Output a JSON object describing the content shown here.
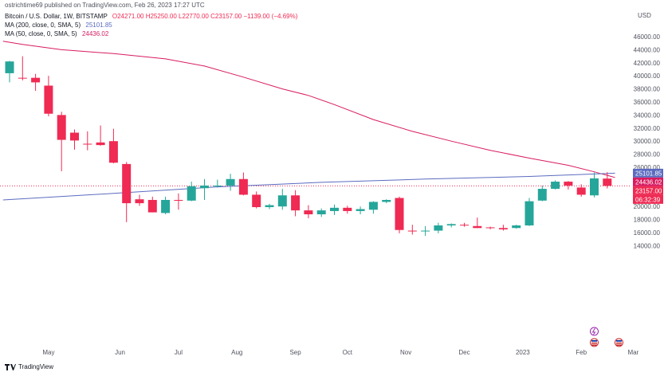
{
  "header": {
    "published": "ostrichtime69 published on TradingView.com, Feb 26, 2023 17:27 UTC"
  },
  "legend": {
    "ohlc_label": "Bitcoin / U.S. Dollar, 1W, BITSTAMP",
    "ohlc_values": "O24271.00 H25250.00 L22770.00 C23157.00 −1139.00 (−4.69%)",
    "ma200_label": "MA (200, close, 0, SMA, 5)",
    "ma200_value": "25101.85",
    "ma50_label": "MA (50, close, 0, SMA, 5)",
    "ma50_value": "24436.02"
  },
  "logo": {
    "text": "TradingView"
  },
  "colors": {
    "up": "#26a69a",
    "down": "#ef2a53",
    "ma200": "#5b6bc0",
    "ma50": "#d81b60",
    "current": "#ef2a53"
  },
  "chart_data": {
    "type": "candlestick",
    "currency": "USD",
    "ylim": [
      13000,
      48000
    ],
    "y_ticks": [
      "14000.00",
      "16000.00",
      "18000.00",
      "20000.00",
      "22000.00",
      "24000.00",
      "26000.00",
      "28000.00",
      "30000.00",
      "32000.00",
      "34000.00",
      "36000.00",
      "38000.00",
      "40000.00",
      "42000.00",
      "44000.00",
      "46000.00"
    ],
    "x_ticks": [
      {
        "label": "May",
        "bar": 3
      },
      {
        "label": "Jun",
        "bar": 8.5
      },
      {
        "label": "Jul",
        "bar": 13
      },
      {
        "label": "Aug",
        "bar": 17.5
      },
      {
        "label": "Sep",
        "bar": 22
      },
      {
        "label": "Oct",
        "bar": 26
      },
      {
        "label": "Nov",
        "bar": 30.5
      },
      {
        "label": "Dec",
        "bar": 35
      },
      {
        "label": "2023",
        "bar": 39.5
      },
      {
        "label": "Feb",
        "bar": 44
      },
      {
        "label": "Mar",
        "bar": 48
      }
    ],
    "candles": [
      {
        "o": 40400,
        "h": 42300,
        "l": 39000,
        "c": 42200
      },
      {
        "o": 39700,
        "h": 43000,
        "l": 39300,
        "c": 39600
      },
      {
        "o": 39700,
        "h": 40300,
        "l": 37700,
        "c": 39000
      },
      {
        "o": 38500,
        "h": 40000,
        "l": 33800,
        "c": 34200
      },
      {
        "o": 34000,
        "h": 34500,
        "l": 25400,
        "c": 30200
      },
      {
        "o": 31300,
        "h": 31800,
        "l": 28700,
        "c": 30100
      },
      {
        "o": 29600,
        "h": 31500,
        "l": 28600,
        "c": 29500
      },
      {
        "o": 29800,
        "h": 32400,
        "l": 29300,
        "c": 29400
      },
      {
        "o": 30000,
        "h": 31900,
        "l": 26600,
        "c": 26700
      },
      {
        "o": 26500,
        "h": 26800,
        "l": 17600,
        "c": 20500
      },
      {
        "o": 21100,
        "h": 21800,
        "l": 20100,
        "c": 20500
      },
      {
        "o": 21000,
        "h": 21500,
        "l": 19100,
        "c": 19100
      },
      {
        "o": 19000,
        "h": 21500,
        "l": 18800,
        "c": 21000
      },
      {
        "o": 21000,
        "h": 22000,
        "l": 19500,
        "c": 20900
      },
      {
        "o": 20900,
        "h": 23800,
        "l": 20800,
        "c": 23100
      },
      {
        "o": 22800,
        "h": 24200,
        "l": 21000,
        "c": 23200
      },
      {
        "o": 23200,
        "h": 24100,
        "l": 22900,
        "c": 23200
      },
      {
        "o": 23200,
        "h": 25000,
        "l": 22400,
        "c": 24200
      },
      {
        "o": 24200,
        "h": 25200,
        "l": 21700,
        "c": 21800
      },
      {
        "o": 21800,
        "h": 22300,
        "l": 19700,
        "c": 19900
      },
      {
        "o": 19900,
        "h": 20400,
        "l": 19600,
        "c": 20200
      },
      {
        "o": 20000,
        "h": 22700,
        "l": 19500,
        "c": 21700
      },
      {
        "o": 21700,
        "h": 22500,
        "l": 18500,
        "c": 19400
      },
      {
        "o": 19400,
        "h": 20200,
        "l": 18200,
        "c": 18800
      },
      {
        "o": 18800,
        "h": 19700,
        "l": 18400,
        "c": 19400
      },
      {
        "o": 19300,
        "h": 20300,
        "l": 18700,
        "c": 19800
      },
      {
        "o": 19800,
        "h": 20100,
        "l": 18900,
        "c": 19300
      },
      {
        "o": 19300,
        "h": 20000,
        "l": 18800,
        "c": 19600
      },
      {
        "o": 19500,
        "h": 20800,
        "l": 18900,
        "c": 20700
      },
      {
        "o": 20700,
        "h": 21100,
        "l": 20500,
        "c": 21000
      },
      {
        "o": 21300,
        "h": 21500,
        "l": 15900,
        "c": 16400
      },
      {
        "o": 16300,
        "h": 17200,
        "l": 15700,
        "c": 16200
      },
      {
        "o": 16200,
        "h": 17000,
        "l": 15500,
        "c": 16300
      },
      {
        "o": 16300,
        "h": 17500,
        "l": 15900,
        "c": 17100
      },
      {
        "o": 17100,
        "h": 17400,
        "l": 16800,
        "c": 17300
      },
      {
        "o": 17200,
        "h": 17500,
        "l": 16900,
        "c": 17100
      },
      {
        "o": 17000,
        "h": 18300,
        "l": 16700,
        "c": 16700
      },
      {
        "o": 16800,
        "h": 16900,
        "l": 16500,
        "c": 16700
      },
      {
        "o": 16700,
        "h": 17200,
        "l": 16300,
        "c": 16500
      },
      {
        "o": 16700,
        "h": 17200,
        "l": 16600,
        "c": 17100
      },
      {
        "o": 17100,
        "h": 21300,
        "l": 17000,
        "c": 20800
      },
      {
        "o": 20900,
        "h": 23200,
        "l": 20800,
        "c": 22700
      },
      {
        "o": 22700,
        "h": 24000,
        "l": 22600,
        "c": 23800
      },
      {
        "o": 23800,
        "h": 23900,
        "l": 22600,
        "c": 23200
      },
      {
        "o": 22900,
        "h": 23400,
        "l": 21500,
        "c": 21800
      },
      {
        "o": 21700,
        "h": 25200,
        "l": 21400,
        "c": 24300
      },
      {
        "o": 24271,
        "h": 25250,
        "l": 22770,
        "c": 23157
      }
    ],
    "ma200": [
      {
        "bar": -0.5,
        "y": 21000
      },
      {
        "bar": 8,
        "y": 22000
      },
      {
        "bar": 16,
        "y": 23000
      },
      {
        "bar": 24,
        "y": 23700
      },
      {
        "bar": 32,
        "y": 24200
      },
      {
        "bar": 40,
        "y": 24600
      },
      {
        "bar": 46.6,
        "y": 25102
      }
    ],
    "ma50": [
      {
        "bar": -0.5,
        "y": 45300
      },
      {
        "bar": 1,
        "y": 44800
      },
      {
        "bar": 4,
        "y": 44000
      },
      {
        "bar": 8,
        "y": 43400
      },
      {
        "bar": 12,
        "y": 42600
      },
      {
        "bar": 15,
        "y": 41500
      },
      {
        "bar": 18,
        "y": 39800
      },
      {
        "bar": 21,
        "y": 38000
      },
      {
        "bar": 23,
        "y": 37000
      },
      {
        "bar": 25,
        "y": 35600
      },
      {
        "bar": 28,
        "y": 33300
      },
      {
        "bar": 31,
        "y": 31500
      },
      {
        "bar": 34,
        "y": 30000
      },
      {
        "bar": 37,
        "y": 28600
      },
      {
        "bar": 40,
        "y": 27400
      },
      {
        "bar": 43,
        "y": 26300
      },
      {
        "bar": 45,
        "y": 25300
      },
      {
        "bar": 46.6,
        "y": 24436
      }
    ],
    "current_price": 23157,
    "price_tags": [
      {
        "value": "25101.85",
        "y": 25101.85,
        "color": "#5b6bc0"
      },
      {
        "value": "24436.02",
        "y": 24436.02,
        "color": "#d81b60"
      },
      {
        "value": "23157.00",
        "y": 23157,
        "color": "#ef2a53"
      }
    ],
    "countdown": "06:32:39"
  }
}
